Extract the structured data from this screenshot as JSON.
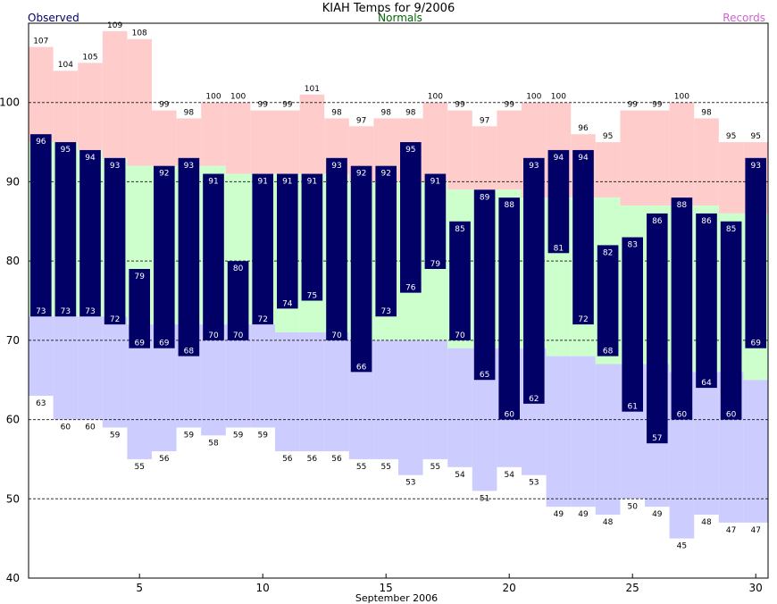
{
  "chart_data": {
    "type": "bar",
    "title": "KIAH Temps for 9/2006",
    "xlabel": "September 2006",
    "ylabel": "",
    "xlim": [
      0.5,
      30.5
    ],
    "ylim": [
      40,
      110
    ],
    "yticks": [
      40,
      50,
      60,
      70,
      80,
      90,
      100
    ],
    "xticks": [
      5,
      10,
      15,
      20,
      25,
      30
    ],
    "grid": "dashed horizontal",
    "legend": {
      "observed": "Observed",
      "normals": "Normals",
      "records": "Records"
    },
    "colors": {
      "observed": "#000066",
      "normals": "#ccffcc",
      "records_high": "#ffcccc",
      "records_low": "#ccccff",
      "observed_legend": "#000066",
      "normals_legend": "#006600",
      "records_legend": "#cc66cc"
    },
    "days": [
      1,
      2,
      3,
      4,
      5,
      6,
      7,
      8,
      9,
      10,
      11,
      12,
      13,
      14,
      15,
      16,
      17,
      18,
      19,
      20,
      21,
      22,
      23,
      24,
      25,
      26,
      27,
      28,
      29,
      30
    ],
    "observed_high": [
      96,
      95,
      94,
      93,
      79,
      92,
      93,
      91,
      80,
      91,
      91,
      91,
      93,
      92,
      92,
      95,
      91,
      85,
      89,
      88,
      93,
      94,
      94,
      82,
      83,
      86,
      88,
      86,
      85,
      93
    ],
    "observed_low": [
      73,
      73,
      73,
      72,
      69,
      69,
      68,
      70,
      70,
      72,
      74,
      75,
      70,
      66,
      73,
      76,
      79,
      70,
      65,
      60,
      62,
      81,
      72,
      68,
      61,
      57,
      60,
      64,
      60,
      69
    ],
    "normal_high": [
      95,
      95,
      94,
      93,
      92,
      92,
      92,
      92,
      91,
      91,
      91,
      91,
      91,
      90,
      90,
      90,
      90,
      89,
      89,
      89,
      88,
      88,
      88,
      88,
      87,
      87,
      87,
      87,
      86,
      86
    ],
    "normal_low": [
      73,
      73,
      73,
      73,
      72,
      72,
      72,
      72,
      72,
      72,
      71,
      71,
      71,
      70,
      70,
      70,
      70,
      69,
      69,
      69,
      69,
      68,
      68,
      67,
      67,
      67,
      66,
      66,
      66,
      65
    ],
    "record_high": [
      107,
      104,
      105,
      109,
      108,
      99,
      98,
      100,
      100,
      99,
      99,
      101,
      98,
      97,
      98,
      98,
      100,
      99,
      97,
      99,
      100,
      100,
      96,
      95,
      99,
      99,
      100,
      98,
      95,
      95
    ],
    "record_low": [
      63,
      60,
      60,
      59,
      55,
      56,
      59,
      58,
      59,
      59,
      56,
      56,
      56,
      55,
      55,
      53,
      55,
      54,
      51,
      54,
      53,
      49,
      49,
      48,
      50,
      49,
      45,
      48,
      47,
      47
    ]
  }
}
